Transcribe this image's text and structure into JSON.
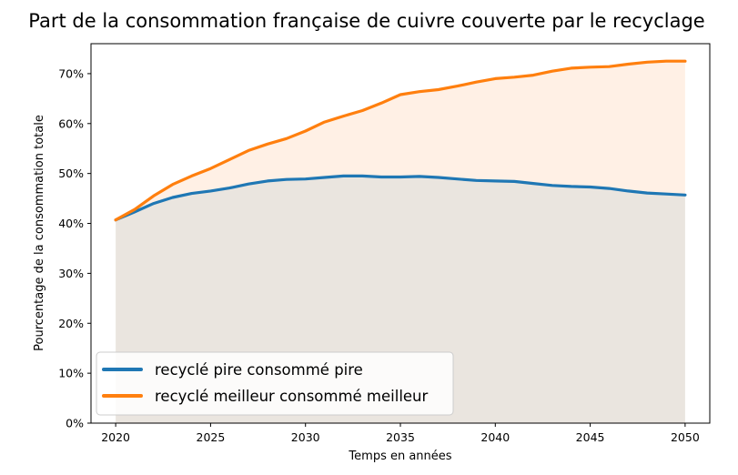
{
  "chart_data": {
    "type": "area",
    "title": "Part de la consommation française de cuivre couverte par le recyclage",
    "xlabel": "Temps en années",
    "ylabel": "Pourcentage de la consommation totale",
    "xlim": [
      2018.7,
      2051.3
    ],
    "ylim": [
      0,
      0.76
    ],
    "xticks": [
      2020,
      2025,
      2030,
      2035,
      2040,
      2045,
      2050
    ],
    "yticks": [
      0,
      0.1,
      0.2,
      0.3,
      0.4,
      0.5,
      0.6,
      0.7
    ],
    "ytick_labels": [
      "0%",
      "10%",
      "20%",
      "30%",
      "40%",
      "50%",
      "60%",
      "70%"
    ],
    "legend_position": "lower-left",
    "grid": false,
    "x": [
      2020,
      2021,
      2022,
      2023,
      2024,
      2025,
      2026,
      2027,
      2028,
      2029,
      2030,
      2031,
      2032,
      2033,
      2034,
      2035,
      2036,
      2037,
      2038,
      2039,
      2040,
      2041,
      2042,
      2043,
      2044,
      2045,
      2046,
      2047,
      2048,
      2049,
      2050
    ],
    "series": [
      {
        "name": "recyclé pire consommé pire",
        "color": "#1f77b4",
        "fill": "#eae5df",
        "values": [
          0.407,
          0.423,
          0.44,
          0.452,
          0.46,
          0.465,
          0.471,
          0.479,
          0.485,
          0.488,
          0.489,
          0.492,
          0.495,
          0.495,
          0.493,
          0.493,
          0.494,
          0.492,
          0.489,
          0.486,
          0.485,
          0.484,
          0.48,
          0.476,
          0.474,
          0.473,
          0.47,
          0.465,
          0.461,
          0.459,
          0.457
        ]
      },
      {
        "name": "recyclé meilleur consommé meilleur",
        "color": "#ff7f0e",
        "fill": "#fff0e5",
        "values": [
          0.407,
          0.428,
          0.455,
          0.478,
          0.495,
          0.51,
          0.528,
          0.546,
          0.559,
          0.57,
          0.585,
          0.603,
          0.615,
          0.626,
          0.641,
          0.658,
          0.664,
          0.668,
          0.675,
          0.683,
          0.69,
          0.693,
          0.697,
          0.705,
          0.711,
          0.713,
          0.714,
          0.719,
          0.723,
          0.725,
          0.725
        ]
      }
    ]
  }
}
